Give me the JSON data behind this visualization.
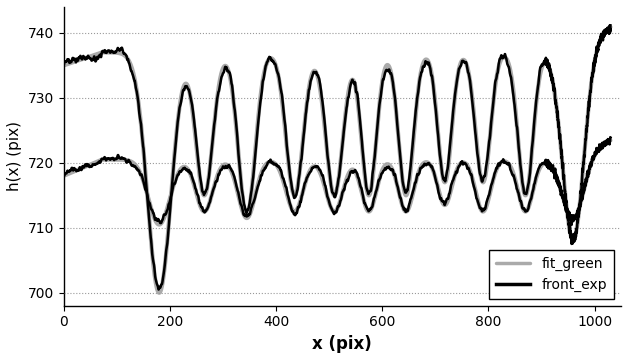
{
  "xlabel": "x (pix)",
  "ylabel": "h(x) (pix)",
  "xlim": [
    0,
    1050
  ],
  "ylim": [
    698,
    744
  ],
  "yticks": [
    700,
    710,
    720,
    730,
    740
  ],
  "xticks": [
    0,
    200,
    400,
    600,
    800,
    1000
  ],
  "legend_labels": [
    "front_exp",
    "fit_green"
  ],
  "exp_color": "black",
  "fit_color": "#aaaaaa",
  "exp_lw": 1.8,
  "fit_lw": 3.0,
  "figsize": [
    6.28,
    3.6
  ],
  "dpi": 100,
  "upper_dip_positions": [
    180,
    265,
    345,
    435,
    510,
    575,
    645,
    718,
    790,
    870,
    960
  ],
  "upper_dip_depths": [
    37,
    22,
    25,
    22,
    22,
    22,
    22,
    20,
    20,
    22,
    30
  ],
  "upper_dip_widths": [
    22,
    16,
    16,
    16,
    16,
    14,
    14,
    13,
    14,
    14,
    20
  ],
  "upper_baseline": 737,
  "lower_dip_positions": [
    180,
    265,
    345,
    435,
    510,
    575,
    645,
    718,
    790,
    870,
    960
  ],
  "lower_dip_depths": [
    10,
    8,
    9,
    8,
    8,
    8,
    8,
    7,
    8,
    8,
    10
  ],
  "lower_dip_widths": [
    20,
    16,
    16,
    16,
    16,
    14,
    14,
    13,
    14,
    14,
    20
  ],
  "lower_baseline": 720.5
}
